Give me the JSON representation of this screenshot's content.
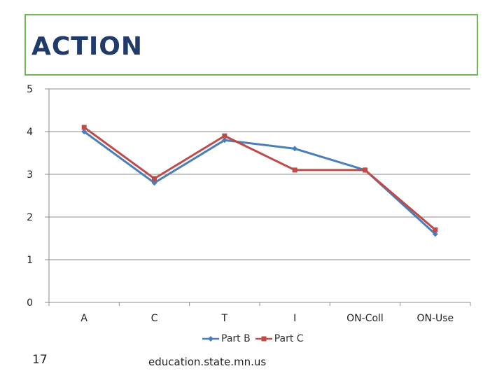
{
  "slide": {
    "title": "ACTION",
    "number": "17",
    "footer": "education.state.mn.us"
  },
  "chart_data": {
    "type": "line",
    "title": "",
    "xlabel": "",
    "ylabel": "",
    "categories": [
      "A",
      "C",
      "T",
      "I",
      "ON-Coll",
      "ON-Use"
    ],
    "ylim": [
      0,
      5
    ],
    "yticks": [
      0,
      1,
      2,
      3,
      4,
      5
    ],
    "grid": true,
    "legend": "bottom",
    "series": [
      {
        "name": "Part B",
        "values": [
          4.0,
          2.8,
          3.8,
          3.6,
          3.1,
          1.6
        ],
        "color": "#4a7ebb",
        "marker": "diamond"
      },
      {
        "name": "Part C",
        "values": [
          4.1,
          2.9,
          3.9,
          3.1,
          3.1,
          1.7
        ],
        "color": "#be4b48",
        "marker": "square"
      }
    ]
  }
}
